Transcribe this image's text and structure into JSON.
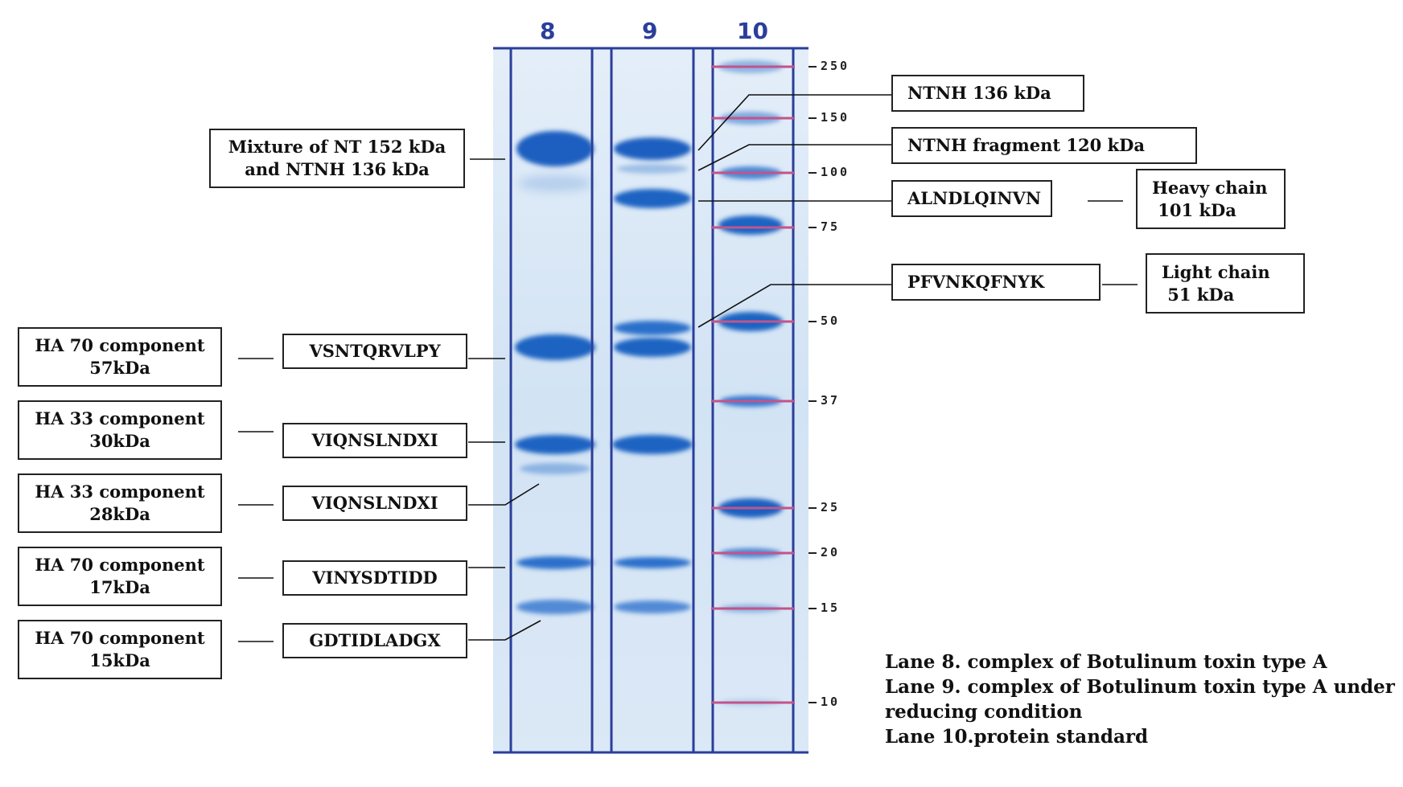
{
  "lanes": [
    {
      "number": "8"
    },
    {
      "number": "9"
    },
    {
      "number": "10"
    }
  ],
  "mw_markers": [
    "250",
    "150",
    "100",
    "75",
    "50",
    "37",
    "25",
    "20",
    "15",
    "10"
  ],
  "left_labels": [
    {
      "component": [
        "HA 70 component",
        "57kDa"
      ],
      "sequence": "VSNTQRVLPY"
    },
    {
      "component": [
        "HA 33 component",
        "30kDa"
      ],
      "sequence": "VIQNSLNDXI"
    },
    {
      "component": [
        "HA 33 component",
        "28kDa"
      ],
      "sequence": "VIQNSLNDXI"
    },
    {
      "component": [
        "HA 70 component",
        "17kDa"
      ],
      "sequence": "VINYSDTIDD"
    },
    {
      "component": [
        "HA 70 component",
        "15kDa"
      ],
      "sequence": "GDTIDLADGX"
    }
  ],
  "mixture_label": [
    "Mixture of NT 152 kDa",
    "and NTNH 136 kDa"
  ],
  "right_labels": {
    "ntnh": "NTNH 136 kDa",
    "ntnh_fragment": "NTNH fragment 120 kDa",
    "heavy_seq": "ALNDLQINVN",
    "heavy_chain": [
      "Heavy chain",
      " 101 kDa"
    ],
    "light_seq": "PFVNKQFNYK",
    "light_chain": [
      "Light chain",
      " 51 kDa"
    ]
  },
  "legend": [
    "Lane 8. complex of Botulinum toxin type A",
    "Lane 9. complex of Botulinum toxin type A under",
    "reducing condition",
    "Lane 10.protein standard"
  ],
  "colors": {
    "gel_background": "#d6e6f5",
    "band": "#1f63c2",
    "lane_border": "#2a3e9b",
    "marker_line": "#c2548a",
    "label_text": "#111111"
  }
}
